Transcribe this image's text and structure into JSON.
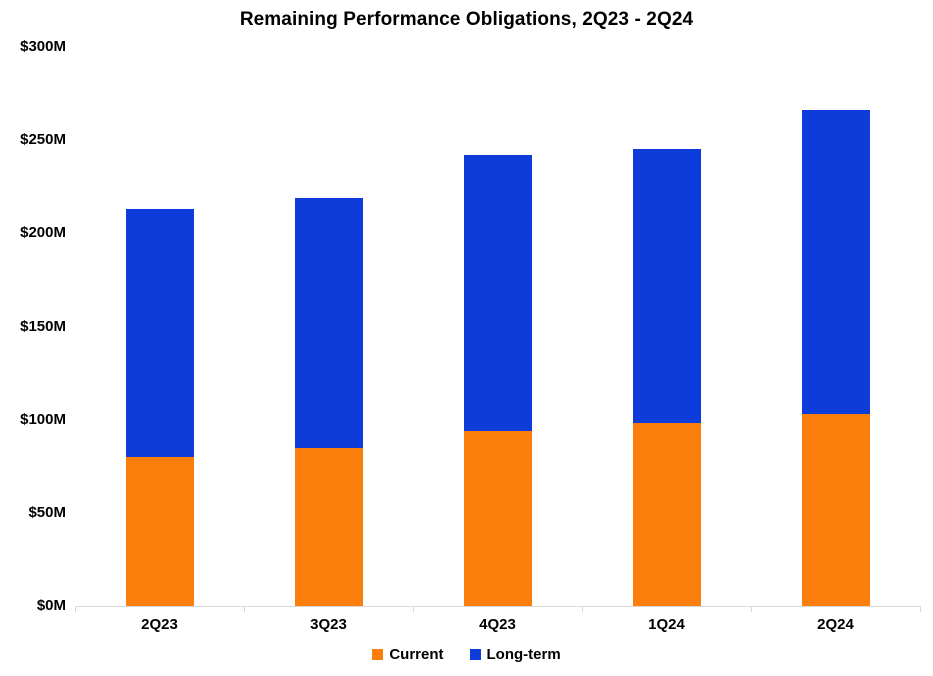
{
  "chart_data": {
    "type": "bar",
    "stacked": true,
    "title": "Remaining Performance Obligations, 2Q23 - 2Q24",
    "categories": [
      "2Q23",
      "3Q23",
      "4Q23",
      "1Q24",
      "2Q24"
    ],
    "series": [
      {
        "name": "Current",
        "color": "#FB7D0B",
        "values": [
          80,
          85,
          94,
          98,
          103
        ]
      },
      {
        "name": "Long-term",
        "color": "#0E3CDB",
        "values": [
          133,
          134,
          148,
          147,
          163
        ]
      }
    ],
    "stack_totals": [
      213,
      219,
      242,
      245,
      266
    ],
    "xlabel": "",
    "ylabel": "",
    "ylim": [
      0,
      300
    ],
    "ytick_interval": 50,
    "ytick_labels": [
      "$0M",
      "$50M",
      "$100M",
      "$150M",
      "$200M",
      "$250M",
      "$300M"
    ],
    "grid": false,
    "legend_position": "bottom",
    "axis_color": "#D9D9D9",
    "background_color": "#FFFFFF",
    "text_color": "#000000"
  }
}
